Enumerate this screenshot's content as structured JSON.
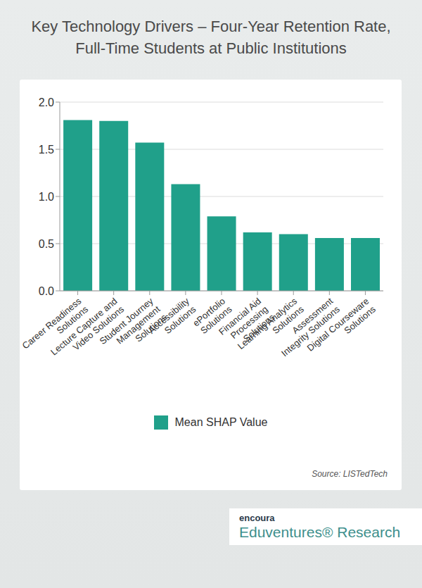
{
  "chart_data": {
    "type": "bar",
    "title": "Key Technology Drivers – Four-Year Retention Rate, Full-Time Students at Public Institutions",
    "categories": [
      "Career Readiness Solutions",
      "Lecture Capture and Video Solutions",
      "Student Journey Management Solutions",
      "Accessibility Solutions",
      "ePortfolio Solutions",
      "Financial Aid Processing Solutions",
      "Learning Analytics Solutions",
      "Assessment Integrity Solutions",
      "Digital Courseware Solutions"
    ],
    "series": [
      {
        "name": "Mean SHAP Value",
        "color": "#20a08a",
        "values": [
          1.81,
          1.8,
          1.57,
          1.13,
          0.79,
          0.62,
          0.6,
          0.56,
          0.56
        ]
      }
    ],
    "ylim": [
      0,
      2
    ],
    "yticks": [
      {
        "value": 0,
        "label": "0.0"
      },
      0.5,
      {
        "value": 1,
        "label": "1.0"
      },
      1.5,
      {
        "value": 2,
        "label": "2.0"
      }
    ],
    "grid": true,
    "legend": "bottom",
    "source": "Source: LISTedTech",
    "branding": [
      "encoura",
      "Eduventures® Research"
    ]
  }
}
